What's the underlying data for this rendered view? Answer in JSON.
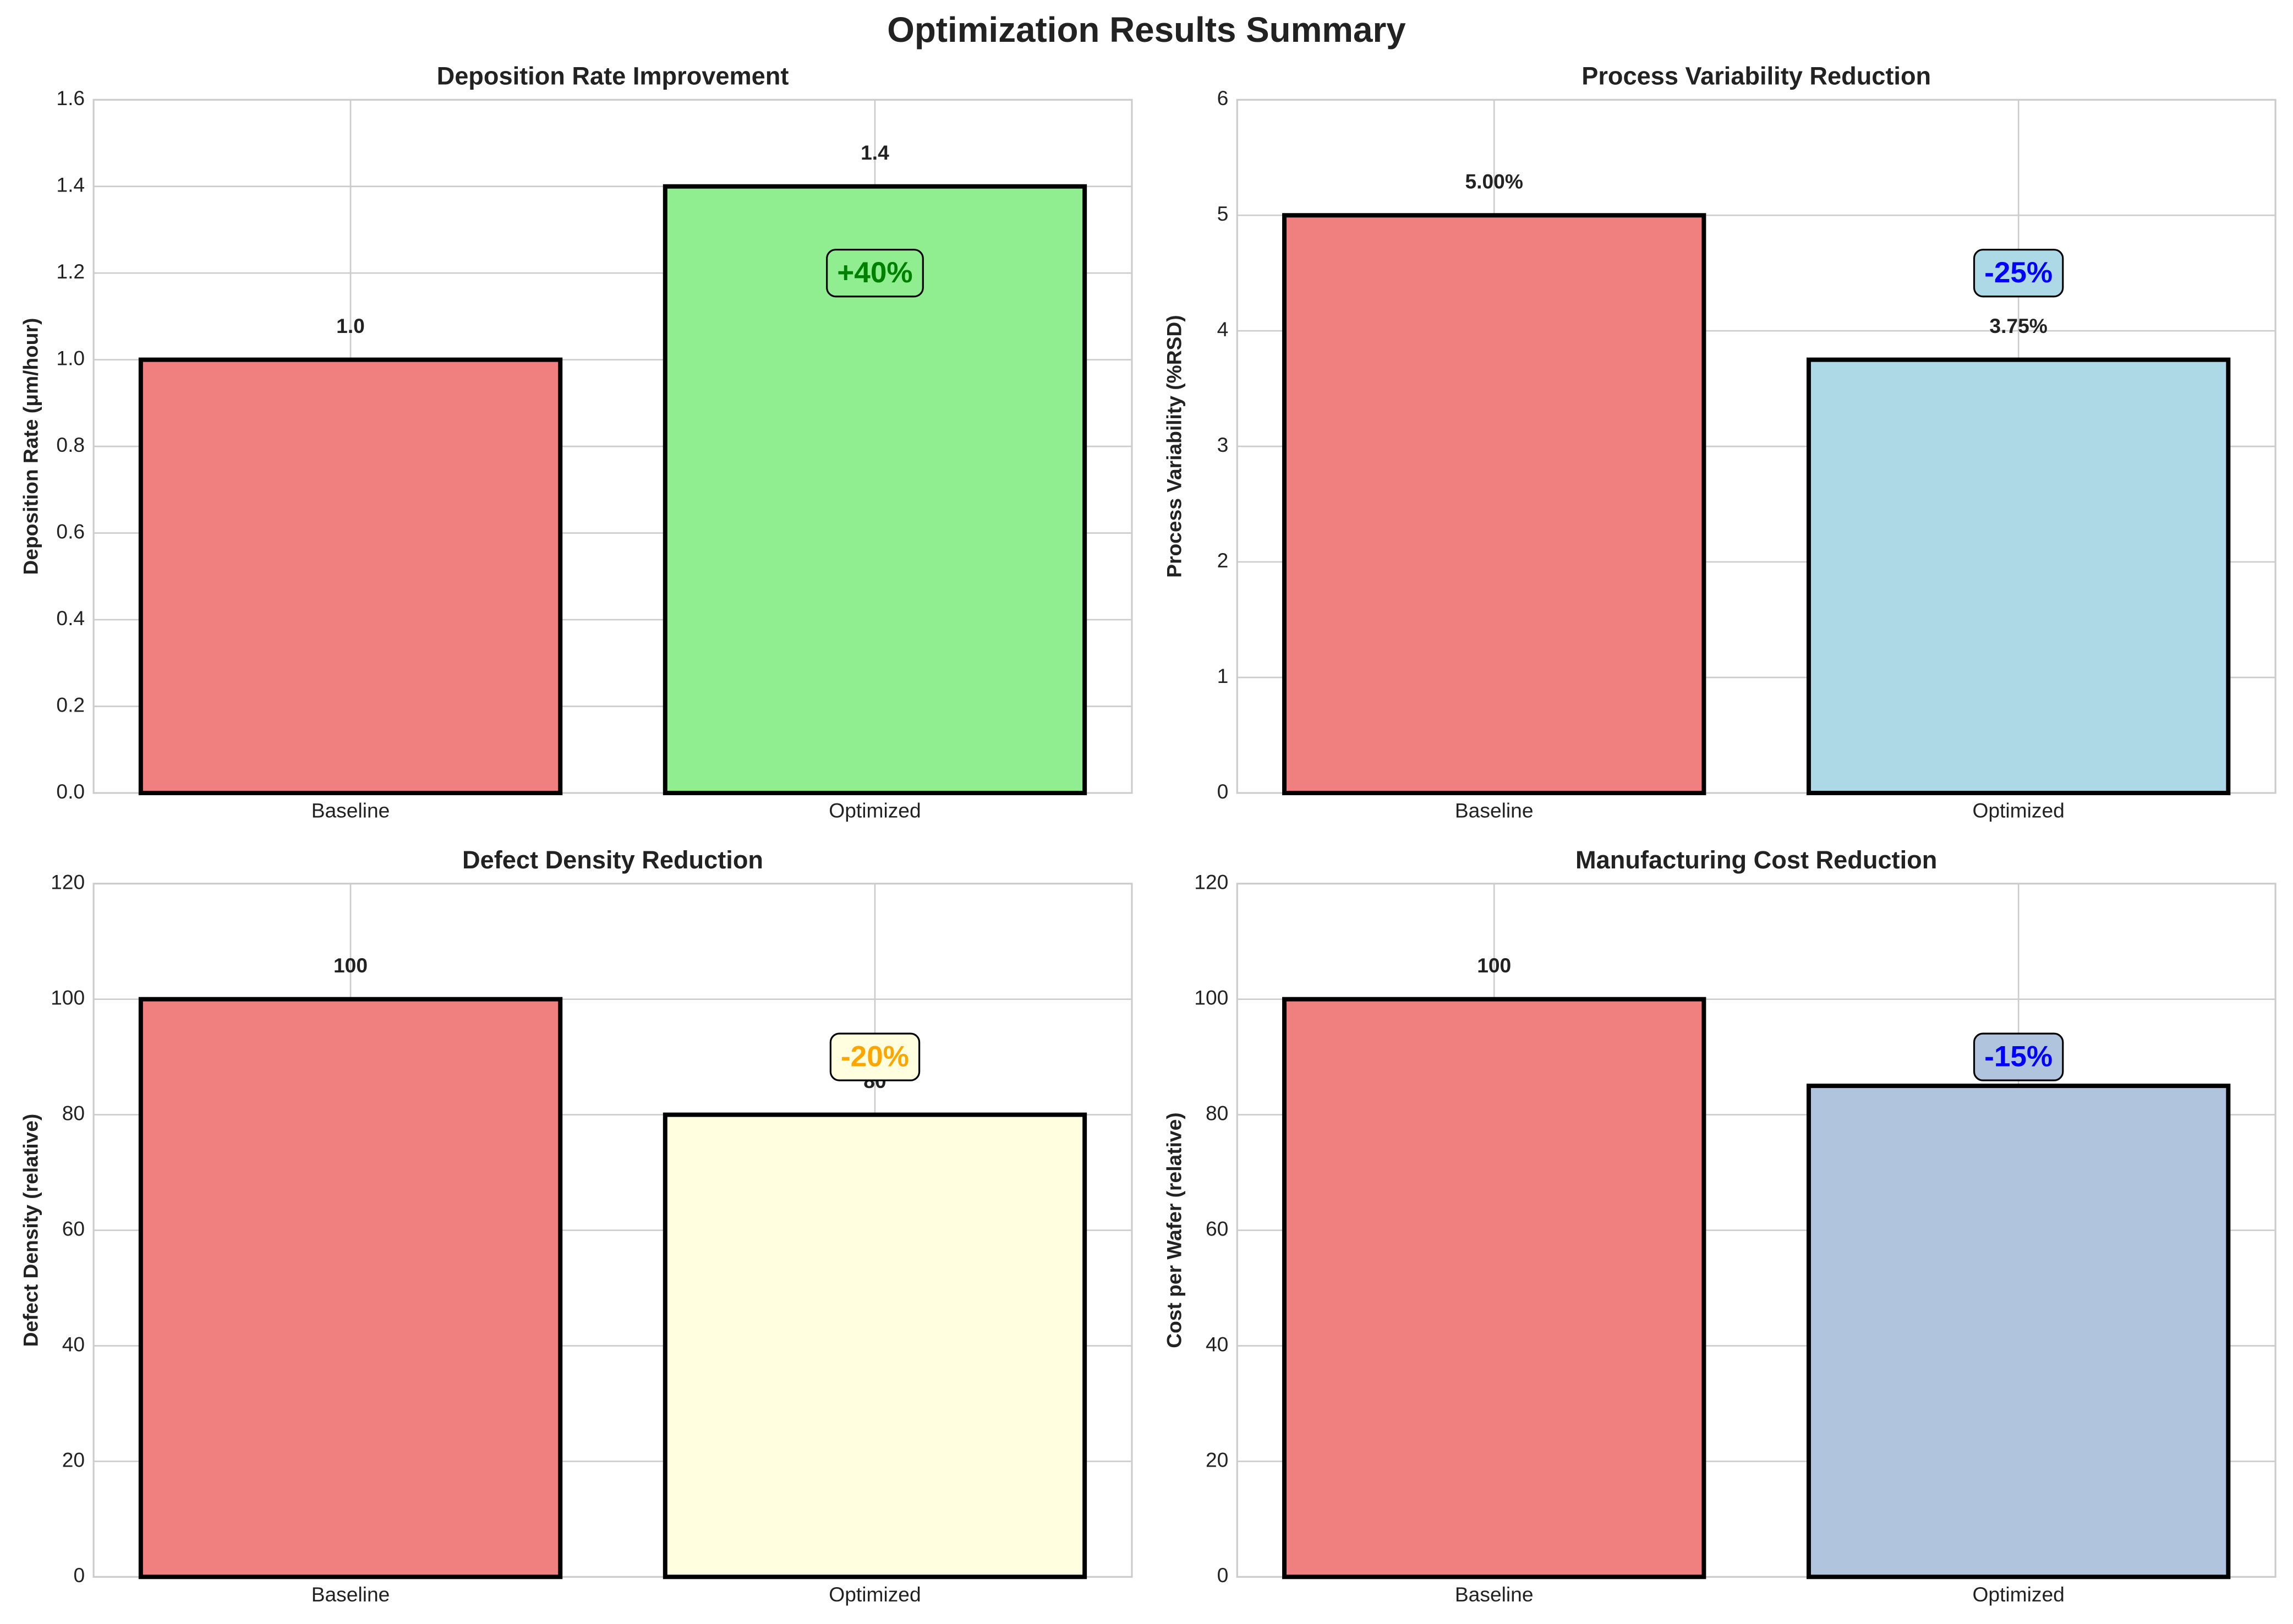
{
  "title": "Optimization Results Summary",
  "chart_data": [
    {
      "type": "bar",
      "title": "Deposition Rate Improvement",
      "ylabel": "Deposition Rate (μm/hour)",
      "categories": [
        "Baseline",
        "Optimized"
      ],
      "values": [
        1.0,
        1.4
      ],
      "value_labels": [
        "1.0",
        "1.4"
      ],
      "colors": [
        "#f08080",
        "#90ee90"
      ],
      "ylim": [
        0,
        1.6
      ],
      "yticks": [
        {
          "value": 0,
          "label": "0.0"
        },
        0.2,
        0.4,
        0.6,
        0.8,
        {
          "value": 1,
          "label": "1.0"
        },
        1.2,
        1.4,
        1.6
      ],
      "annotation": {
        "text": "+40%",
        "color": "green",
        "background": "#90ee90"
      },
      "grid": true
    },
    {
      "type": "bar",
      "title": "Process Variability Reduction",
      "ylabel": "Process Variability (%RSD)",
      "categories": [
        "Baseline",
        "Optimized"
      ],
      "values": [
        5.0,
        3.75
      ],
      "value_labels": [
        "5.00%",
        "3.75%"
      ],
      "colors": [
        "#f08080",
        "#add8e6"
      ],
      "ylim": [
        0,
        6
      ],
      "yticks": [
        0,
        1,
        2,
        3,
        4,
        5,
        6
      ],
      "annotation": {
        "text": "-25%",
        "color": "blue",
        "background": "#add8e6"
      },
      "grid": true
    },
    {
      "type": "bar",
      "title": "Defect Density Reduction",
      "ylabel": "Defect Density (relative)",
      "categories": [
        "Baseline",
        "Optimized"
      ],
      "values": [
        100,
        80
      ],
      "value_labels": [
        "100",
        "80"
      ],
      "colors": [
        "#f08080",
        "#ffffe0"
      ],
      "ylim": [
        0,
        120
      ],
      "yticks": [
        0,
        20,
        40,
        60,
        80,
        100,
        120
      ],
      "annotation": {
        "text": "-20%",
        "color": "orange",
        "background": "#ffffe0"
      },
      "grid": true
    },
    {
      "type": "bar",
      "title": "Manufacturing Cost Reduction",
      "ylabel": "Cost per Wafer (relative)",
      "categories": [
        "Baseline",
        "Optimized"
      ],
      "values": [
        100,
        85
      ],
      "value_labels": [
        "100",
        null
      ],
      "colors": [
        "#f08080",
        "#b0c4de"
      ],
      "ylim": [
        0,
        120
      ],
      "yticks": [
        0,
        20,
        40,
        60,
        80,
        100,
        120
      ],
      "annotation": {
        "text": "-15%",
        "color": "blue",
        "background": "#b0c4de"
      },
      "grid": true
    }
  ]
}
